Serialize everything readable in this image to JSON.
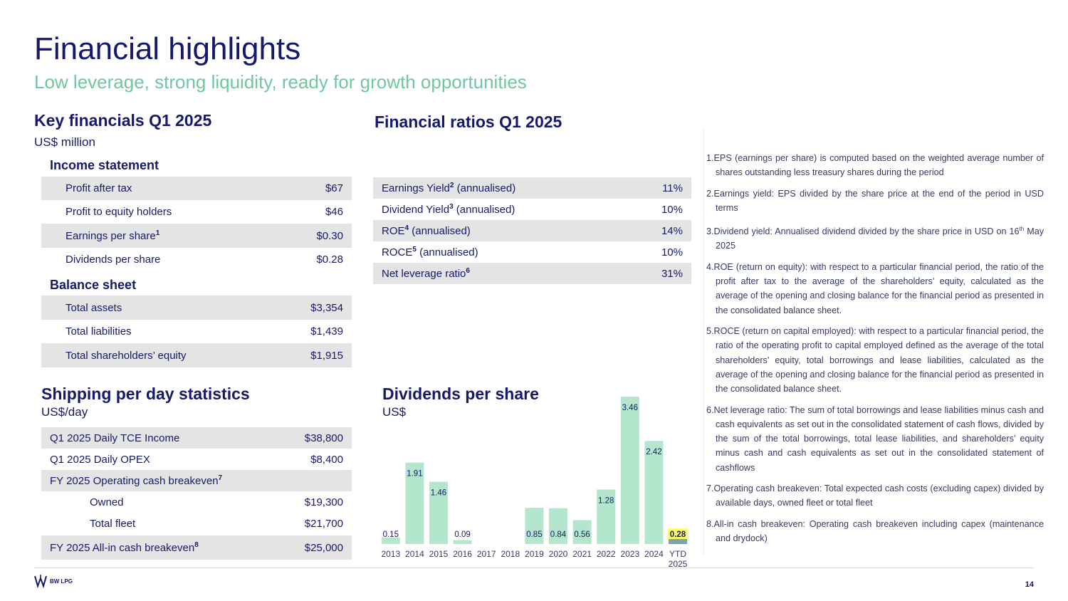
{
  "header": {
    "title": "Financial highlights",
    "subtitle": "Low leverage, strong liquidity, ready for growth opportunities"
  },
  "key_financials": {
    "heading": "Key financials Q1 2025",
    "unit": "US$ million",
    "income_heading": "Income statement",
    "income_rows": [
      {
        "label": "Profit after tax",
        "sup": "",
        "value": "$67"
      },
      {
        "label": "Profit to equity holders",
        "sup": "",
        "value": "$46"
      },
      {
        "label": "Earnings per share",
        "sup": "1",
        "value": "$0.30"
      },
      {
        "label": "Dividends per share",
        "sup": "",
        "value": "$0.28"
      }
    ],
    "balance_heading": "Balance sheet",
    "balance_rows": [
      {
        "label": "Total assets",
        "value": "$3,354"
      },
      {
        "label": "Total liabilities",
        "value": "$1,439"
      },
      {
        "label": "Total shareholders’ equity",
        "value": "$1,915"
      }
    ]
  },
  "ratios": {
    "heading": "Financial ratios Q1 2025",
    "rows": [
      {
        "pre": "Earnings Yield",
        "sup": "2",
        "post": " (annualised)",
        "value": "11%"
      },
      {
        "pre": "Dividend Yield",
        "sup": "3",
        "post": " (annualised)",
        "value": "10%"
      },
      {
        "pre": "ROE",
        "sup": "4",
        "post": " (annualised)",
        "value": "14%"
      },
      {
        "pre": "ROCE",
        "sup": "5",
        "post": " (annualised)",
        "value": "10%"
      },
      {
        "pre": "Net leverage ratio",
        "sup": "6",
        "post": "",
        "value": "31%"
      }
    ]
  },
  "shipping": {
    "heading": "Shipping per day statistics",
    "unit": "US$/day",
    "rows": [
      {
        "label": "Q1 2025 Daily TCE Income",
        "sup": "",
        "value": "$38,800"
      },
      {
        "label": "Q1 2025 Daily OPEX",
        "sup": "",
        "value": "$8,400"
      },
      {
        "label": "FY 2025 Operating cash breakeven",
        "sup": "7",
        "value": ""
      },
      {
        "label": "Owned",
        "sup": "",
        "value": "$19,300"
      },
      {
        "label": "Total fleet",
        "sup": "",
        "value": "$21,700"
      },
      {
        "label": "FY 2025 All-in cash breakeven",
        "sup": "8",
        "value": "$25,000"
      }
    ]
  },
  "chart_data": {
    "type": "bar",
    "title": "Dividends per share",
    "ylabel": "US$",
    "xlabel": "",
    "categories": [
      "2013",
      "2014",
      "2015",
      "2016",
      "2017",
      "2018",
      "2019",
      "2020",
      "2021",
      "2022",
      "2023",
      "2024",
      "YTD 2025"
    ],
    "values": [
      0.15,
      1.91,
      1.46,
      0.09,
      0,
      0,
      0.85,
      0.84,
      0.56,
      1.28,
      3.46,
      2.42,
      0.28
    ],
    "labels": [
      "0.15",
      "1.91",
      "1.46",
      "0.09",
      "",
      "",
      "0.85",
      "0.84",
      "0.56",
      "1.28",
      "3.46",
      "2.42",
      "0.28"
    ],
    "ylim": [
      0,
      3.46
    ],
    "grid": false,
    "colors": {
      "bar": "#b3e6cc",
      "highlight_bar": "#7aa5b0",
      "highlight_label_bg": "#ffff66",
      "label": "#14196b"
    }
  },
  "notes": [
    {
      "n": "1.",
      "text": "EPS (earnings per share) is computed based on the weighted average number of shares outstanding less treasury shares during the period"
    },
    {
      "n": "2.",
      "text": "Earnings yield: EPS divided by the share price at the end of the period in USD terms"
    },
    {
      "n": "3.",
      "text_pre": "Dividend yield: Annualised dividend divided by the share price in USD on 16",
      "sup": "th",
      "text_post": " May 2025"
    },
    {
      "n": "4.",
      "text": "ROE (return on equity): with respect to a particular financial period, the ratio of the profit after tax to the average of the shareholders’ equity, calculated as the average of the opening and closing balance for the financial period as presented in the consolidated balance sheet."
    },
    {
      "n": "5.",
      "text": "ROCE (return on capital employed): with respect to a particular financial period, the ratio of the operating profit to capital employed defined as the average of the total shareholders’ equity, total borrowings and lease liabilities, calculated as the average of the opening and closing balance for the financial period as presented in the consolidated balance sheet."
    },
    {
      "n": "6.",
      "text": "Net leverage ratio: The sum of total borrowings and lease liabilities minus cash and cash equivalents as set out in the consolidated statement of cash flows, divided by the sum of the total borrowings, total lease liabilities, and shareholders’ equity minus cash and cash equivalents as set out in the consolidated statement of cashflows"
    },
    {
      "n": "7.",
      "text": "Operating cash breakeven: Total expected cash costs (excluding capex) divided by available days, owned fleet or total fleet"
    },
    {
      "n": "8.",
      "text": "All-in cash breakeven: Operating cash breakeven including capex (maintenance and drydock)"
    }
  ],
  "footer": {
    "logo_text": "BW LPG",
    "page_number": "14"
  },
  "colors": {
    "navy": "#14196b",
    "green": "#6fc7a0",
    "row_shade": "#e4e4e4"
  }
}
